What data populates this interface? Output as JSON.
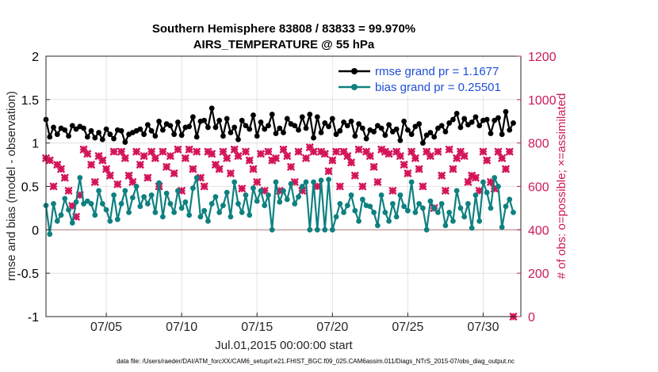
{
  "chart_data": {
    "type": "line",
    "title": "Southern Hemisphere 83808 / 83833 = 99.970%",
    "subtitle": "AIRS_TEMPERATURE @ 55 hPa",
    "xlabel": "Jul.01,2015 00:00:00 start",
    "ylabel_left": "rmse and bias (model - observation)",
    "ylabel_right": "# of obs: o=possible; ×=assimilated",
    "footnote": "data file: /Users/raeder/DAI/ATM_forcXX/CAM6_setup/f.e21.FHIST_BGC.f09_025.CAM6assim.011/Diags_NTrS_2015-07/obs_diag_output.nc",
    "xlim": [
      1,
      32.5
    ],
    "ylim_left": [
      -1,
      2
    ],
    "ylim_right": [
      0,
      1200
    ],
    "x_ticks": [
      5,
      10,
      15,
      20,
      25,
      30
    ],
    "x_tick_labels": [
      "07/05",
      "07/10",
      "07/15",
      "07/20",
      "07/25",
      "07/30"
    ],
    "y_ticks_left": [
      -1,
      -0.5,
      0,
      0.5,
      1,
      1.5,
      2
    ],
    "y_tick_labels_left": [
      "-1",
      "-0.5",
      "0",
      "0.5",
      "1",
      "1.5",
      "2"
    ],
    "y_ticks_right": [
      0,
      200,
      400,
      600,
      800,
      1000,
      1200
    ],
    "y_tick_labels_right": [
      "0",
      "200",
      "400",
      "600",
      "800",
      "1000",
      "1200"
    ],
    "grid": true,
    "legend_position": "top-right",
    "colors": {
      "rmse": "#000000",
      "bias": "#0f8080",
      "obs": "#d4145a",
      "right_axis": "#cc1a5c",
      "legend_text": "#1f4fd6",
      "zero_line": "#c8a0a0"
    },
    "x": [
      1.0,
      1.25,
      1.5,
      1.75,
      2.0,
      2.25,
      2.5,
      2.75,
      3.0,
      3.25,
      3.5,
      3.75,
      4.0,
      4.25,
      4.5,
      4.75,
      5.0,
      5.25,
      5.5,
      5.75,
      6.0,
      6.25,
      6.5,
      6.75,
      7.0,
      7.25,
      7.5,
      7.75,
      8.0,
      8.25,
      8.5,
      8.75,
      9.0,
      9.25,
      9.5,
      9.75,
      10.0,
      10.25,
      10.5,
      10.75,
      11.0,
      11.25,
      11.5,
      11.75,
      12.0,
      12.25,
      12.5,
      12.75,
      13.0,
      13.25,
      13.5,
      13.75,
      14.0,
      14.25,
      14.5,
      14.75,
      15.0,
      15.25,
      15.5,
      15.75,
      16.0,
      16.25,
      16.5,
      16.75,
      17.0,
      17.25,
      17.5,
      17.75,
      18.0,
      18.25,
      18.5,
      18.75,
      19.0,
      19.25,
      19.5,
      19.75,
      20.0,
      20.25,
      20.5,
      20.75,
      21.0,
      21.25,
      21.5,
      21.75,
      22.0,
      22.25,
      22.5,
      22.75,
      23.0,
      23.25,
      23.5,
      23.75,
      24.0,
      24.25,
      24.5,
      24.75,
      25.0,
      25.25,
      25.5,
      25.75,
      26.0,
      26.25,
      26.5,
      26.75,
      27.0,
      27.25,
      27.5,
      27.75,
      28.0,
      28.25,
      28.5,
      28.75,
      29.0,
      29.25,
      29.5,
      29.75,
      30.0,
      30.25,
      30.5,
      30.75,
      31.0,
      31.25,
      31.5,
      31.75,
      32.0
    ],
    "series": [
      {
        "name": "rmse grand pr = 1.1677",
        "marker": "circle",
        "values": [
          1.27,
          1.07,
          1.18,
          1.1,
          1.17,
          1.15,
          1.08,
          1.2,
          1.16,
          1.19,
          1.17,
          1.07,
          1.14,
          1.06,
          1.12,
          1.04,
          1.16,
          1.1,
          1.05,
          1.15,
          1.14,
          1.01,
          1.1,
          1.12,
          1.14,
          1.16,
          1.1,
          1.21,
          1.14,
          1.08,
          1.25,
          1.15,
          1.22,
          1.2,
          1.1,
          1.24,
          1.09,
          1.18,
          1.19,
          1.3,
          1.07,
          1.25,
          1.26,
          1.18,
          1.4,
          1.18,
          1.26,
          1.08,
          1.28,
          1.12,
          1.18,
          1.04,
          1.26,
          1.2,
          1.16,
          1.32,
          1.08,
          1.24,
          1.16,
          1.2,
          1.33,
          1.11,
          1.17,
          1.12,
          1.28,
          1.22,
          1.2,
          1.15,
          1.3,
          1.17,
          1.33,
          1.06,
          1.3,
          1.12,
          1.23,
          1.19,
          1.28,
          1.1,
          1.14,
          1.24,
          1.2,
          1.25,
          1.08,
          1.22,
          1.17,
          1.05,
          1.15,
          1.13,
          1.2,
          1.17,
          1.09,
          1.21,
          1.13,
          1.16,
          1.03,
          1.25,
          1.15,
          1.1,
          1.19,
          1.22,
          1.0,
          1.09,
          1.12,
          1.07,
          1.17,
          1.2,
          1.13,
          1.23,
          1.27,
          1.34,
          1.18,
          1.28,
          1.21,
          1.24,
          1.3,
          1.2,
          1.26,
          1.27,
          1.11,
          1.26,
          1.29,
          1.1,
          1.36,
          1.15,
          1.23
        ]
      },
      {
        "name": "bias grand pr = 0.25501",
        "marker": "circle",
        "values": [
          0.28,
          -0.05,
          0.3,
          0.1,
          0.17,
          0.36,
          0.23,
          0.08,
          0.32,
          0.6,
          0.3,
          0.33,
          0.3,
          0.17,
          0.45,
          0.3,
          0.23,
          0.1,
          0.4,
          0.12,
          0.3,
          0.45,
          0.2,
          0.37,
          0.5,
          0.27,
          0.38,
          0.3,
          0.4,
          0.2,
          0.54,
          0.15,
          0.42,
          0.3,
          0.2,
          0.45,
          0.25,
          0.32,
          0.17,
          0.48,
          0.6,
          0.15,
          0.22,
          0.1,
          0.3,
          0.38,
          0.2,
          0.28,
          0.43,
          0.15,
          0.55,
          0.3,
          0.2,
          0.4,
          0.17,
          0.48,
          0.33,
          0.45,
          0.28,
          0.4,
          0.0,
          0.55,
          0.32,
          0.45,
          0.35,
          0.53,
          0.3,
          0.38,
          0.5,
          0.55,
          0.0,
          0.55,
          0.0,
          0.57,
          0.0,
          0.58,
          0.0,
          0.15,
          0.3,
          0.2,
          0.28,
          0.4,
          0.22,
          0.1,
          0.35,
          0.28,
          0.27,
          0.2,
          0.05,
          0.4,
          0.2,
          0.1,
          0.3,
          0.15,
          0.4,
          0.27,
          0.22,
          0.55,
          0.2,
          0.3,
          0.25,
          0.0,
          0.33,
          0.25,
          0.2,
          0.3,
          0.05,
          0.2,
          0.1,
          0.45,
          0.25,
          0.15,
          0.3,
          0.02,
          0.4,
          0.1,
          0.55,
          0.43,
          0.25,
          0.6,
          0.5,
          0.03,
          0.27,
          0.35,
          0.2
        ]
      },
      {
        "name": "obs",
        "marker": "cross",
        "values": [
          730,
          720,
          600,
          700,
          680,
          640,
          580,
          510,
          460,
          560,
          770,
          750,
          700,
          620,
          740,
          720,
          680,
          650,
          760,
          610,
          760,
          730,
          650,
          620,
          760,
          700,
          740,
          640,
          760,
          730,
          600,
          760,
          690,
          740,
          660,
          770,
          580,
          730,
          770,
          680,
          760,
          640,
          600,
          760,
          750,
          700,
          680,
          760,
          730,
          660,
          770,
          740,
          590,
          760,
          720,
          680,
          620,
          750,
          580,
          760,
          720,
          730,
          580,
          770,
          740,
          690,
          620,
          760,
          580,
          730,
          780,
          760,
          600,
          760,
          750,
          670,
          720,
          760,
          600,
          760,
          740,
          710,
          650,
          770,
          600,
          760,
          740,
          690,
          620,
          770,
          760,
          750,
          580,
          760,
          740,
          700,
          660,
          760,
          730,
          680,
          600,
          760,
          740,
          500,
          760,
          650,
          580,
          770,
          680,
          730,
          760,
          740,
          620,
          650,
          640,
          580,
          760,
          720,
          620,
          590,
          760,
          730,
          680,
          760,
          0
        ]
      }
    ]
  }
}
